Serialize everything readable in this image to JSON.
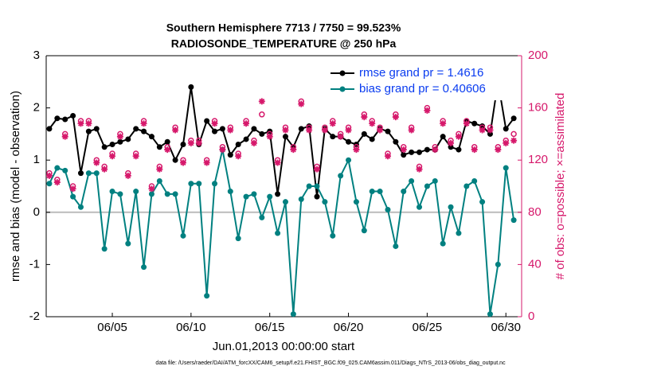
{
  "chart_data": {
    "type": "line",
    "title": "Southern Hemisphere 7713 / 7750 = 99.523%",
    "subtitle": "RADIOSONDE_TEMPERATURE @ 250 hPa",
    "x_label": "Jun.01,2013 00:00:00 start",
    "y_label": "rmse and bias (model - observation)",
    "y2_label": "# of obs: o=possible; ×=assimilated",
    "footnote": "data file: /Users/raeder/DAI/ATM_forcXX/CAM6_setup/f.e21.FHIST_BGC.f09_025.CAM6assim.011/Diags_NTrS_2013-06/obs_diag_output.nc",
    "x": [
      1,
      1.5,
      2,
      2.5,
      3,
      3.5,
      4,
      4.5,
      5,
      5.5,
      6,
      6.5,
      7,
      7.5,
      8,
      8.5,
      9,
      9.5,
      10,
      10.5,
      11,
      11.5,
      12,
      12.5,
      13,
      13.5,
      14,
      14.5,
      15,
      15.5,
      16,
      16.5,
      17,
      17.5,
      18,
      18.5,
      19,
      19.5,
      20,
      20.5,
      21,
      21.5,
      22,
      22.5,
      23,
      23.5,
      24,
      24.5,
      25,
      25.5,
      26,
      26.5,
      27,
      27.5,
      28,
      28.5,
      29,
      29.5,
      30,
      30.5
    ],
    "xlim": [
      0.8,
      31.0
    ],
    "xticks": [
      {
        "value": 5,
        "label": "06/05"
      },
      {
        "value": 10,
        "label": "06/10"
      },
      {
        "value": 15,
        "label": "06/15"
      },
      {
        "value": 20,
        "label": "06/20"
      },
      {
        "value": 25,
        "label": "06/25"
      },
      {
        "value": 30,
        "label": "06/30"
      }
    ],
    "ylim": [
      -2,
      3
    ],
    "yticks": [
      -2,
      -1,
      0,
      1,
      2,
      3
    ],
    "y2lim": [
      0,
      200
    ],
    "y2ticks": [
      0,
      40,
      80,
      120,
      160,
      200
    ],
    "legend": "upper right",
    "series": [
      {
        "name": "rmse grand pr = 1.4616",
        "color": "#000000",
        "marker": "circle",
        "values": [
          1.6,
          1.8,
          1.78,
          1.85,
          0.75,
          1.55,
          1.6,
          1.25,
          1.3,
          1.35,
          1.4,
          1.6,
          1.55,
          1.45,
          1.25,
          1.35,
          1.0,
          1.3,
          2.4,
          1.3,
          1.75,
          1.55,
          1.6,
          1.1,
          1.3,
          1.4,
          1.6,
          1.5,
          1.55,
          0.35,
          1.45,
          1.25,
          1.6,
          1.65,
          0.3,
          1.6,
          1.45,
          1.45,
          1.35,
          1.3,
          1.5,
          1.4,
          1.6,
          1.55,
          1.35,
          1.1,
          1.15,
          1.15,
          1.2,
          1.2,
          1.45,
          1.25,
          1.2,
          1.75,
          1.7,
          1.65,
          1.5,
          2.5,
          1.6,
          1.8
        ]
      },
      {
        "name": "bias grand pr = 0.40606",
        "color": "#008080",
        "marker": "circle",
        "values": [
          0.55,
          0.85,
          0.8,
          0.3,
          0.1,
          0.75,
          0.75,
          -0.7,
          0.4,
          0.35,
          -0.6,
          0.4,
          -1.05,
          0.35,
          0.6,
          0.35,
          0.35,
          -0.45,
          0.55,
          0.55,
          -1.6,
          0.55,
          1.2,
          0.4,
          -0.5,
          0.3,
          0.35,
          -0.1,
          0.3,
          -0.4,
          0.2,
          -1.95,
          0.25,
          0.5,
          0.5,
          0.2,
          -0.45,
          0.7,
          1.0,
          0.2,
          -0.35,
          0.4,
          0.4,
          0.05,
          -0.65,
          0.4,
          0.6,
          0.1,
          0.5,
          0.6,
          -0.6,
          0.1,
          -0.4,
          0.5,
          0.6,
          0.2,
          -1.95,
          -1.0,
          0.85,
          -0.15
        ]
      },
      {
        "color": "#d6186b",
        "marker": "open-circle",
        "axis": "y2",
        "values": [
          110,
          105,
          140,
          100,
          150,
          150,
          120,
          115,
          125,
          140,
          110,
          125,
          150,
          100,
          115,
          130,
          145,
          120,
          135,
          135,
          120,
          150,
          130,
          145,
          125,
          150,
          135,
          155,
          140,
          120,
          145,
          130,
          165,
          145,
          115,
          145,
          150,
          140,
          145,
          130,
          155,
          150,
          145,
          125,
          155,
          130,
          145,
          115,
          160,
          130,
          150,
          135,
          140,
          150,
          130,
          145,
          145,
          130,
          135,
          140
        ]
      },
      {
        "color": "#d6186b",
        "marker": "star",
        "axis": "y2",
        "values": [
          108,
          103,
          138,
          98,
          148,
          148,
          118,
          113,
          123,
          138,
          108,
          123,
          148,
          98,
          113,
          128,
          143,
          118,
          133,
          133,
          118,
          148,
          128,
          143,
          123,
          148,
          133,
          165,
          138,
          118,
          143,
          128,
          163,
          143,
          113,
          143,
          148,
          138,
          143,
          128,
          153,
          148,
          143,
          123,
          153,
          128,
          143,
          113,
          158,
          128,
          148,
          133,
          138,
          148,
          128,
          143,
          143,
          128,
          133,
          135
        ]
      }
    ]
  }
}
